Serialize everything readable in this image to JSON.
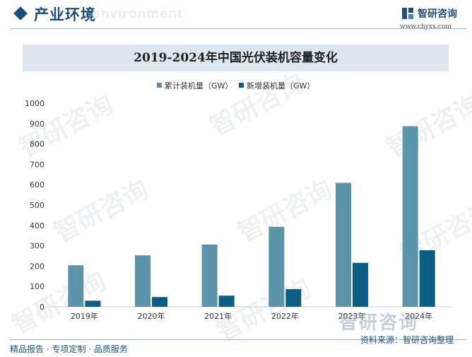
{
  "header": {
    "section_title": "产业环境",
    "section_sub": "environment",
    "logo_name": "智研咨询",
    "logo_url": "www.chyxx.com"
  },
  "watermark": {
    "text": "智研咨询"
  },
  "footer": {
    "left": "精品报告 · 专项定制 · 品质服务",
    "right": "资料来源：智研咨询整理"
  },
  "colors": {
    "cumulative": "#5b93a8",
    "new": "#0c5f82",
    "brand": "#1e4f7a"
  },
  "chart_data": {
    "type": "bar",
    "title": "2019-2024年中国光伏装机容量变化",
    "categories": [
      "2019年",
      "2020年",
      "2021年",
      "2022年",
      "2023年",
      "2024年"
    ],
    "series": [
      {
        "name": "累计装机量（GW）",
        "values": [
          204,
          253,
          306,
          393,
          609,
          887
        ]
      },
      {
        "name": "新增装机量（GW）",
        "values": [
          30,
          48,
          55,
          87,
          216,
          278
        ]
      }
    ],
    "y_ticks": [
      "0",
      "100",
      "200",
      "300",
      "400",
      "500",
      "600",
      "700",
      "800",
      "900",
      "1000"
    ],
    "ylim": [
      0,
      1000
    ],
    "legend_position": "top-center",
    "grid": false
  }
}
